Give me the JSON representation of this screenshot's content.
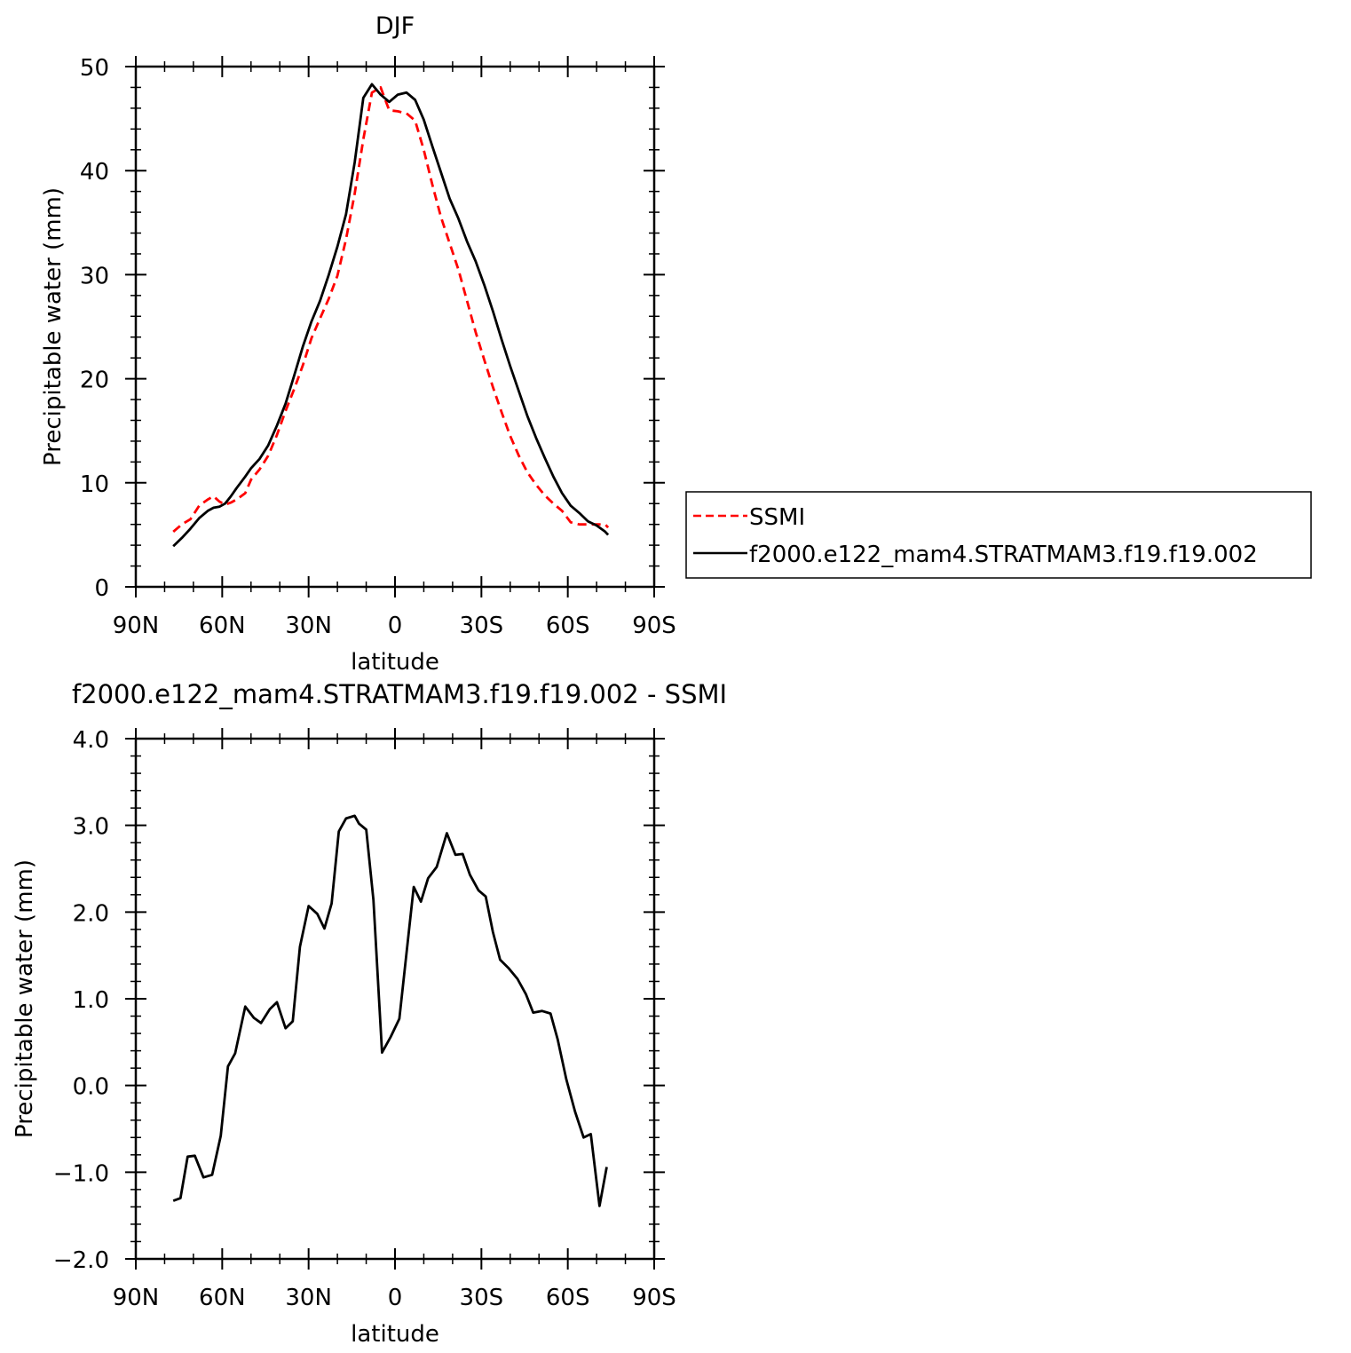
{
  "chart_data": [
    {
      "type": "line",
      "title": "DJF",
      "xlabel": "latitude",
      "ylabel": "Precipitable water (mm)",
      "xlim": [
        -90,
        90
      ],
      "ylim": [
        0,
        50
      ],
      "x_ticks": [
        {
          "value": -90,
          "label": "90N"
        },
        {
          "value": -60,
          "label": "60N"
        },
        {
          "value": -30,
          "label": "30N"
        },
        {
          "value": 0,
          "label": "0"
        },
        {
          "value": 30,
          "label": "30S"
        },
        {
          "value": 60,
          "label": "60S"
        },
        {
          "value": 90,
          "label": "90S"
        }
      ],
      "y_ticks": [
        {
          "value": 0,
          "label": "0"
        },
        {
          "value": 10,
          "label": "10"
        },
        {
          "value": 20,
          "label": "20"
        },
        {
          "value": 30,
          "label": "30"
        },
        {
          "value": 40,
          "label": "40"
        },
        {
          "value": 50,
          "label": "50"
        }
      ],
      "legend": {
        "position": "right"
      },
      "series": [
        {
          "name": "SSMI",
          "color": "#ff0000",
          "dash": "dashed",
          "x": [
            -77,
            -74,
            -71,
            -68,
            -65,
            -63,
            -61,
            -59,
            -57,
            -55,
            -52,
            -50,
            -47,
            -44,
            -41,
            -38,
            -35,
            -32,
            -29,
            -26,
            -23,
            -20,
            -17,
            -14,
            -11,
            -8,
            -5,
            -2,
            1,
            4,
            7,
            10,
            13,
            16,
            19,
            22,
            25,
            28,
            31,
            34,
            37,
            40,
            43,
            46,
            49,
            52,
            55,
            58,
            61,
            64,
            67,
            70,
            73,
            74
          ],
          "y": [
            5.3,
            6.0,
            6.5,
            7.8,
            8.4,
            8.7,
            8.2,
            7.9,
            8.1,
            8.4,
            9.0,
            10.3,
            11.3,
            12.6,
            14.6,
            16.9,
            19.0,
            21.3,
            23.9,
            25.8,
            27.7,
            29.9,
            33.4,
            37.8,
            43.0,
            47.5,
            48.0,
            45.8,
            45.7,
            45.5,
            44.8,
            42.0,
            38.6,
            35.5,
            33.0,
            30.5,
            27.5,
            24.5,
            21.8,
            19.2,
            16.8,
            14.5,
            12.6,
            11.0,
            9.8,
            8.8,
            8.0,
            7.3,
            6.2,
            6.0,
            6.0,
            6.0,
            6.0,
            5.7
          ]
        },
        {
          "name": "f2000.e122_mam4.STRATMAM3.f19.f19.002",
          "color": "#000000",
          "dash": "solid",
          "x": [
            -77,
            -74,
            -71,
            -68,
            -65,
            -63,
            -61,
            -59,
            -57,
            -55,
            -52,
            -50,
            -47,
            -44,
            -41,
            -38,
            -35,
            -32,
            -29,
            -26,
            -23,
            -20,
            -17,
            -14,
            -11,
            -8,
            -5,
            -2,
            1,
            4,
            7,
            10,
            13,
            16,
            19,
            22,
            25,
            28,
            31,
            34,
            37,
            40,
            43,
            46,
            49,
            52,
            55,
            58,
            61,
            64,
            67,
            70,
            73,
            74
          ],
          "y": [
            3.9,
            4.7,
            5.6,
            6.6,
            7.3,
            7.6,
            7.7,
            8.0,
            8.7,
            9.5,
            10.6,
            11.4,
            12.3,
            13.6,
            15.5,
            17.6,
            20.3,
            23.1,
            25.5,
            27.5,
            30.0,
            32.7,
            35.8,
            40.8,
            47.0,
            48.3,
            47.3,
            46.6,
            47.3,
            47.5,
            46.8,
            44.9,
            42.3,
            39.8,
            37.3,
            35.4,
            33.2,
            31.3,
            29.0,
            26.5,
            23.8,
            21.2,
            18.8,
            16.4,
            14.3,
            12.4,
            10.6,
            9.0,
            7.8,
            7.1,
            6.3,
            5.9,
            5.3,
            5.0
          ]
        }
      ]
    },
    {
      "type": "line",
      "title": "f2000.e122_mam4.STRATMAM3.f19.f19.002 - SSMI",
      "xlabel": "latitude",
      "ylabel": "Precipitable water (mm)",
      "xlim": [
        -90,
        90
      ],
      "ylim": [
        -2.0,
        4.0
      ],
      "x_ticks": [
        {
          "value": -90,
          "label": "90N"
        },
        {
          "value": -60,
          "label": "60N"
        },
        {
          "value": -30,
          "label": "30N"
        },
        {
          "value": 0,
          "label": "0"
        },
        {
          "value": 30,
          "label": "30S"
        },
        {
          "value": 60,
          "label": "60S"
        },
        {
          "value": 90,
          "label": "90S"
        }
      ],
      "y_ticks": [
        {
          "value": -2.0,
          "label": "−2.0"
        },
        {
          "value": -1.0,
          "label": "−1.0"
        },
        {
          "value": 0.0,
          "label": "0.0"
        },
        {
          "value": 1.0,
          "label": "1.0"
        },
        {
          "value": 2.0,
          "label": "2.0"
        },
        {
          "value": 3.0,
          "label": "3.0"
        },
        {
          "value": 4.0,
          "label": "4.0"
        }
      ],
      "series": [
        {
          "color": "#000000",
          "dash": "solid",
          "x": [
            -77,
            -74.5,
            -72,
            -69.5,
            -66.5,
            -63.5,
            -60.5,
            -58,
            -55.5,
            -52,
            -49,
            -46.5,
            -43.5,
            -41,
            -38,
            -35.5,
            -33,
            -30,
            -27,
            -24.5,
            -22,
            -19.5,
            -17,
            -14,
            -12.5,
            -10,
            -7.5,
            -4.5,
            -1.5,
            1.5,
            4,
            6.5,
            9,
            11.5,
            14.5,
            18,
            21,
            23.5,
            26,
            29,
            31.5,
            34,
            36.5,
            39.5,
            42.5,
            45.5,
            48,
            51,
            54,
            56.5,
            59.5,
            62.5,
            65.5,
            68,
            71,
            73.5
          ],
          "y": [
            -1.33,
            -1.3,
            -0.82,
            -0.81,
            -1.06,
            -1.03,
            -0.58,
            0.22,
            0.37,
            0.91,
            0.78,
            0.72,
            0.88,
            0.96,
            0.66,
            0.74,
            1.6,
            2.07,
            1.98,
            1.81,
            2.1,
            2.93,
            3.08,
            3.11,
            3.02,
            2.95,
            2.14,
            0.38,
            0.56,
            0.77,
            1.53,
            2.29,
            2.12,
            2.39,
            2.52,
            2.91,
            2.66,
            2.67,
            2.43,
            2.25,
            2.18,
            1.77,
            1.45,
            1.35,
            1.23,
            1.05,
            0.84,
            0.86,
            0.83,
            0.53,
            0.07,
            -0.3,
            -0.6,
            -0.56,
            -1.39,
            -0.94
          ]
        }
      ]
    }
  ]
}
